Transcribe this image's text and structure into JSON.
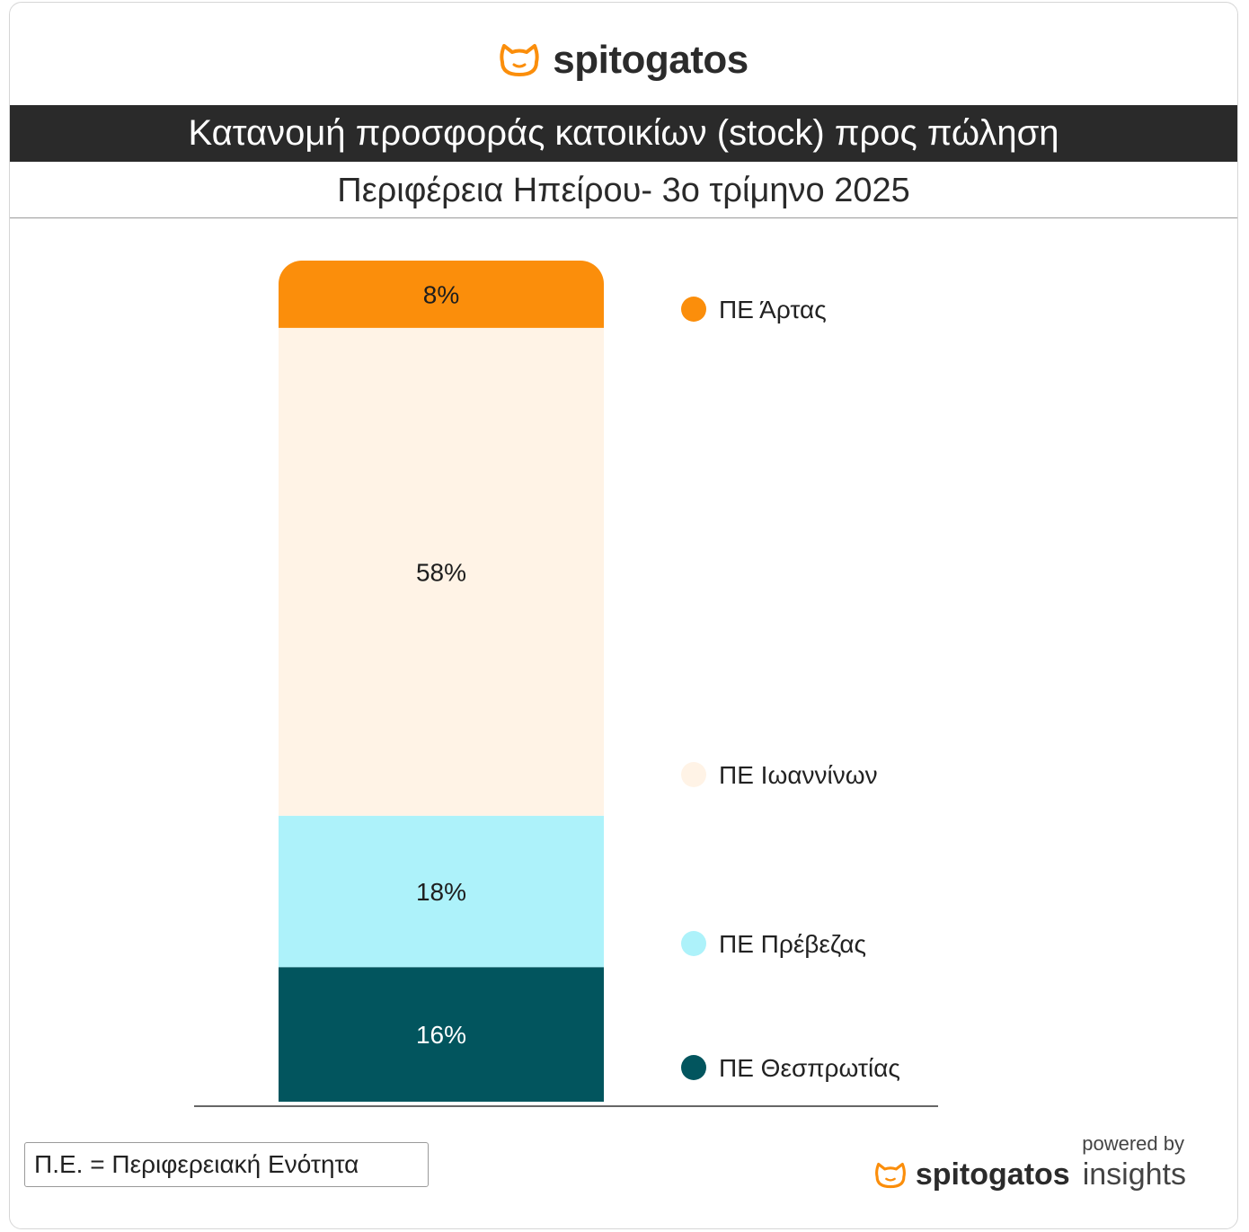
{
  "header": {
    "brand": "spitogatos",
    "title": "Κατανομή προσφοράς κατοικίων (stock) προς πώληση",
    "subtitle": "Περιφέρεια Ηπείρου- 3ο τρίμηνο 2025"
  },
  "chart_data": {
    "type": "bar",
    "stacked": true,
    "orientation": "vertical",
    "title": "Κατανομή προσφοράς κατοικίων (stock) προς πώληση",
    "subtitle": "Περιφέρεια Ηπείρου- 3ο τρίμηνο 2025",
    "unit": "%",
    "legend_position": "right",
    "series": [
      {
        "name": "ΠΕ Θεσπρωτίας",
        "value": 16,
        "label": "16%",
        "color": "#02555e",
        "label_color": "#ffffff"
      },
      {
        "name": "ΠΕ Πρέβεζας",
        "value": 18,
        "label": "18%",
        "color": "#adf2fa",
        "label_color": "#1e1e1e"
      },
      {
        "name": "ΠΕ Ιωαννίνων",
        "value": 58,
        "label": "58%",
        "color": "#fff3e6",
        "label_color": "#1e1e1e"
      },
      {
        "name": "ΠΕ Άρτας",
        "value": 8,
        "label": "8%",
        "color": "#fb8e0b",
        "label_color": "#1e1e1e"
      }
    ]
  },
  "footer": {
    "note": "Π.Ε. = Περιφερειακή Ενότητα",
    "powered_by": "powered by",
    "brand": "spitogatos",
    "brand_suffix": "insights"
  },
  "colors": {
    "accent": "#fb8e0b",
    "title_bar": "#2a2a2a"
  }
}
